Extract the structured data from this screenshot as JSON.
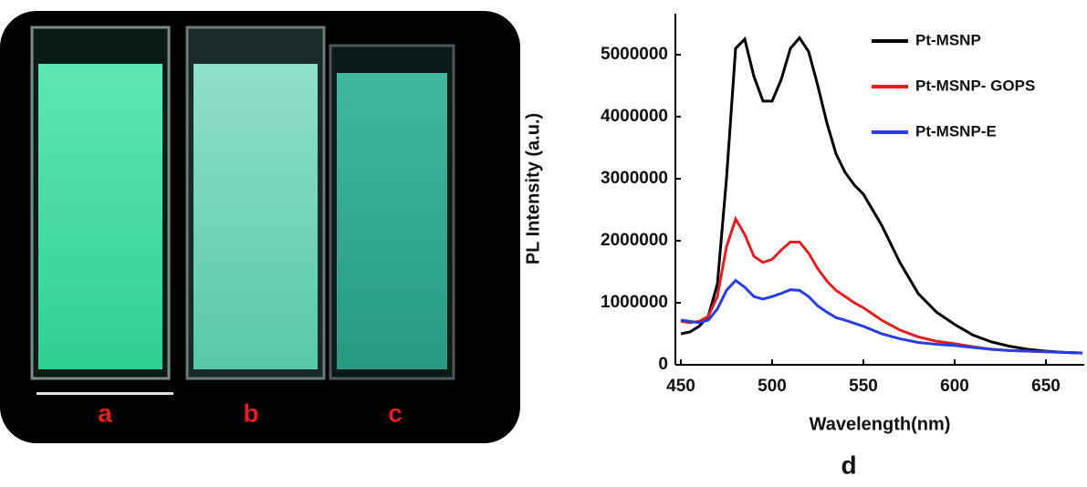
{
  "photo": {
    "labels": [
      "a",
      "b",
      "c"
    ]
  },
  "caption": "d",
  "chart_data": {
    "type": "line",
    "xlabel": "Wavelength(nm)",
    "ylabel": "PL Intensity (a.u.)",
    "x": [
      450,
      455,
      460,
      465,
      470,
      475,
      480,
      485,
      490,
      495,
      500,
      505,
      510,
      515,
      520,
      525,
      530,
      535,
      540,
      545,
      550,
      555,
      560,
      570,
      580,
      590,
      600,
      610,
      620,
      630,
      640,
      650,
      660,
      670
    ],
    "series": [
      {
        "name": "Pt-MSNP",
        "color": "#000000",
        "values": [
          500000,
          530000,
          620000,
          780000,
          1300000,
          3000000,
          5100000,
          5250000,
          4650000,
          4250000,
          4250000,
          4600000,
          5100000,
          5270000,
          5050000,
          4500000,
          3900000,
          3400000,
          3100000,
          2900000,
          2750000,
          2500000,
          2250000,
          1650000,
          1150000,
          850000,
          650000,
          480000,
          370000,
          300000,
          250000,
          220000,
          200000,
          190000
        ]
      },
      {
        "name": "Pt-MSNP- GOPS",
        "color": "#e02020",
        "values": [
          700000,
          680000,
          700000,
          780000,
          1100000,
          1900000,
          2350000,
          2100000,
          1750000,
          1650000,
          1700000,
          1850000,
          1980000,
          1980000,
          1800000,
          1550000,
          1350000,
          1200000,
          1100000,
          1000000,
          920000,
          820000,
          720000,
          560000,
          450000,
          380000,
          340000,
          290000,
          250000,
          230000,
          220000,
          210000,
          200000,
          190000
        ]
      },
      {
        "name": "Pt-MSNP-E",
        "color": "#2a3ee0",
        "values": [
          720000,
          700000,
          680000,
          720000,
          900000,
          1200000,
          1360000,
          1250000,
          1100000,
          1060000,
          1100000,
          1150000,
          1210000,
          1200000,
          1100000,
          950000,
          850000,
          760000,
          720000,
          670000,
          620000,
          560000,
          500000,
          420000,
          360000,
          330000,
          310000,
          280000,
          250000,
          230000,
          220000,
          210000,
          200000,
          190000
        ]
      }
    ],
    "xlim": [
      447,
      671
    ],
    "ylim": [
      0,
      5660000
    ],
    "xticks": [
      450,
      500,
      550,
      600,
      650
    ],
    "yticks": [
      0,
      1000000,
      2000000,
      3000000,
      4000000,
      5000000
    ],
    "legend": "upper right"
  }
}
